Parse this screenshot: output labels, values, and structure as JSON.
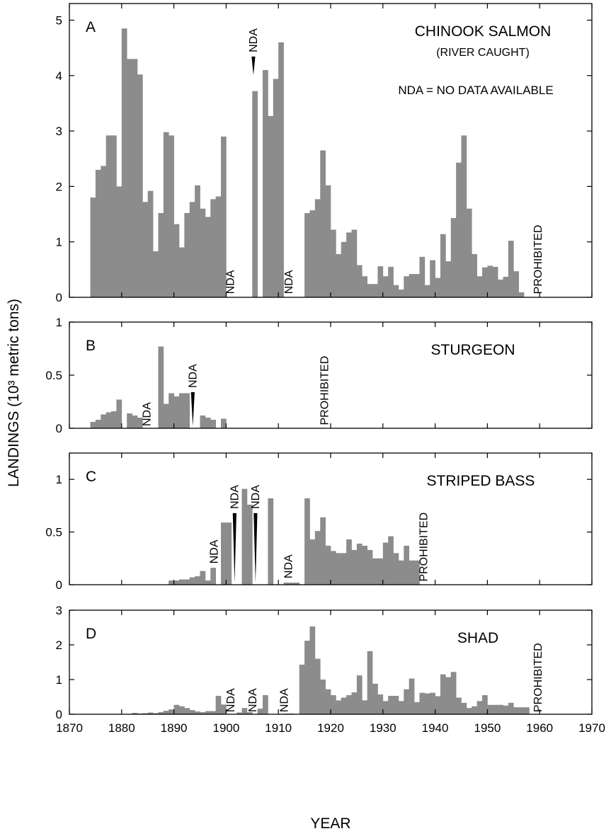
{
  "figure": {
    "ylabel": "LANDINGS (10³ metric tons)",
    "xlabel": "YEAR",
    "bar_color": "#8c8c8c",
    "x_ticks": [
      1870,
      1880,
      1890,
      1900,
      1910,
      1920,
      1930,
      1940,
      1950,
      1960,
      1970
    ]
  },
  "chart_data": [
    {
      "type": "bar",
      "panel": "A",
      "title": "CHINOOK SALMON",
      "subtitle": "(RIVER CAUGHT)",
      "note": "NDA = NO DATA AVAILABLE",
      "xlim": [
        1870,
        1970
      ],
      "ylim": [
        0,
        5.3
      ],
      "y_ticks": [
        0,
        1,
        2,
        3,
        4,
        5
      ],
      "x": [
        1874,
        1875,
        1876,
        1877,
        1878,
        1879,
        1880,
        1881,
        1882,
        1883,
        1884,
        1885,
        1886,
        1887,
        1888,
        1889,
        1890,
        1891,
        1892,
        1893,
        1894,
        1895,
        1896,
        1897,
        1898,
        1899,
        1900,
        1901,
        1902,
        1903,
        1904,
        1905,
        1906,
        1907,
        1908,
        1909,
        1910,
        1911,
        1912,
        1913,
        1914,
        1915,
        1916,
        1917,
        1918,
        1919,
        1920,
        1921,
        1922,
        1923,
        1924,
        1925,
        1926,
        1927,
        1928,
        1929,
        1930,
        1931,
        1932,
        1933,
        1934,
        1935,
        1936,
        1937,
        1938,
        1939,
        1940,
        1941,
        1942,
        1943,
        1944,
        1945,
        1946,
        1947,
        1948,
        1949,
        1950,
        1951,
        1952,
        1953,
        1954,
        1955,
        1956,
        1957,
        1958,
        1959
      ],
      "values": [
        1.8,
        2.3,
        2.37,
        2.92,
        2.92,
        2.0,
        4.85,
        4.3,
        4.3,
        4.02,
        1.72,
        1.92,
        0.83,
        1.52,
        2.98,
        2.92,
        1.32,
        0.9,
        1.52,
        1.72,
        2.02,
        1.6,
        1.45,
        1.77,
        1.82,
        2.9,
        0,
        0,
        0,
        0,
        0,
        3.72,
        0,
        4.1,
        3.27,
        3.94,
        4.6,
        0,
        0,
        0,
        0,
        1.52,
        1.57,
        1.77,
        2.65,
        2.02,
        1.22,
        0.78,
        1.0,
        1.17,
        1.22,
        0.58,
        0.38,
        0.24,
        0.24,
        0.56,
        0.38,
        0.55,
        0.22,
        0.14,
        0.38,
        0.42,
        0.42,
        0.73,
        0.22,
        0.67,
        0.35,
        1.14,
        0.65,
        1.43,
        2.43,
        2.92,
        1.6,
        0.78,
        0.38,
        0.54,
        0.57,
        0.55,
        0.32,
        0.37,
        1.02,
        0.47,
        0.09,
        0,
        0,
        0
      ],
      "annotations": [
        {
          "text": "NDA",
          "x": 1901.5,
          "y": 0.06
        },
        {
          "text": "NDA",
          "x": 1912.7,
          "y": 0.06
        },
        {
          "text": "NDA",
          "x": 1905.9,
          "y": 4.42,
          "pointer_to": 4.01
        },
        {
          "text": "PROHIBITED",
          "x": 1960.4,
          "y": 0.06
        }
      ]
    },
    {
      "type": "bar",
      "panel": "B",
      "title": "STURGEON",
      "xlim": [
        1870,
        1970
      ],
      "ylim": [
        0,
        1.0
      ],
      "y_ticks": [
        0,
        0.5,
        1.0
      ],
      "x": [
        1874,
        1875,
        1876,
        1877,
        1878,
        1879,
        1880,
        1881,
        1882,
        1883,
        1884,
        1885,
        1886,
        1887,
        1888,
        1889,
        1890,
        1891,
        1892,
        1893,
        1894,
        1895,
        1896,
        1897,
        1898,
        1899,
        1900
      ],
      "values": [
        0.06,
        0.08,
        0.13,
        0.15,
        0.16,
        0.27,
        0,
        0.14,
        0.12,
        0.1,
        0,
        0,
        0,
        0.77,
        0.23,
        0.33,
        0.3,
        0.33,
        0.33,
        0,
        0,
        0.12,
        0.1,
        0.08,
        0,
        0.09,
        0
      ],
      "annotations": [
        {
          "text": "NDA",
          "x": 1885.5,
          "y": 0.02
        },
        {
          "text": "NDA",
          "x": 1894.3,
          "y": 0.38,
          "pointer_to": 0.02
        },
        {
          "text": "PROHIBITED",
          "x": 1919.5,
          "y": 0.03
        }
      ]
    },
    {
      "type": "bar",
      "panel": "C",
      "title": "STRIPED BASS",
      "xlim": [
        1870,
        1970
      ],
      "ylim": [
        0,
        1.25
      ],
      "y_ticks": [
        0,
        0.5,
        1.0
      ],
      "x": [
        1889,
        1890,
        1891,
        1892,
        1893,
        1894,
        1895,
        1896,
        1897,
        1898,
        1899,
        1900,
        1901,
        1902,
        1903,
        1904,
        1905,
        1906,
        1907,
        1908,
        1909,
        1910,
        1911,
        1912,
        1913,
        1914,
        1915,
        1916,
        1917,
        1918,
        1919,
        1920,
        1921,
        1922,
        1923,
        1924,
        1925,
        1926,
        1927,
        1928,
        1929,
        1930,
        1931,
        1932,
        1933,
        1934,
        1935,
        1936
      ],
      "values": [
        0.04,
        0.04,
        0.05,
        0.05,
        0.07,
        0.08,
        0.13,
        0.04,
        0.16,
        0,
        0.59,
        0.59,
        0,
        0,
        0.91,
        0.76,
        0,
        0,
        0,
        0.82,
        0,
        0,
        0.02,
        0.02,
        0.02,
        0,
        0.82,
        0.43,
        0.51,
        0.64,
        0.37,
        0.32,
        0.3,
        0.3,
        0.43,
        0.33,
        0.39,
        0.37,
        0.33,
        0.25,
        0.25,
        0.4,
        0.46,
        0.3,
        0.23,
        0.37,
        0.23,
        0.23
      ],
      "annotations": [
        {
          "text": "NDA",
          "x": 1898.4,
          "y": 0.2
        },
        {
          "text": "NDA",
          "x": 1902.3,
          "y": 0.72,
          "pointer_to": 0.02
        },
        {
          "text": "NDA",
          "x": 1906.3,
          "y": 0.72,
          "pointer_to": 0.02
        },
        {
          "text": "NDA",
          "x": 1912.6,
          "y": 0.06
        },
        {
          "text": "PROHIBITED",
          "x": 1938.5,
          "y": 0.03
        }
      ]
    },
    {
      "type": "bar",
      "panel": "D",
      "title": "SHAD",
      "xlim": [
        1870,
        1970
      ],
      "ylim": [
        0,
        3.0
      ],
      "y_ticks": [
        0,
        1,
        2,
        3
      ],
      "x": [
        1878,
        1879,
        1880,
        1881,
        1882,
        1883,
        1884,
        1885,
        1886,
        1887,
        1888,
        1889,
        1890,
        1891,
        1892,
        1893,
        1894,
        1895,
        1896,
        1897,
        1898,
        1899,
        1900,
        1901,
        1902,
        1903,
        1904,
        1905,
        1906,
        1907,
        1908,
        1909,
        1910,
        1911,
        1912,
        1913,
        1914,
        1915,
        1916,
        1917,
        1918,
        1919,
        1920,
        1921,
        1922,
        1923,
        1924,
        1925,
        1926,
        1927,
        1928,
        1929,
        1930,
        1931,
        1932,
        1933,
        1934,
        1935,
        1936,
        1937,
        1938,
        1939,
        1940,
        1941,
        1942,
        1943,
        1944,
        1945,
        1946,
        1947,
        1948,
        1949,
        1950,
        1951,
        1952,
        1953,
        1954,
        1955,
        1956,
        1957
      ],
      "values": [
        0.01,
        0.01,
        0.01,
        0.01,
        0.04,
        0.02,
        0.03,
        0.05,
        0.03,
        0.06,
        0.1,
        0.14,
        0.27,
        0.23,
        0.18,
        0.12,
        0.08,
        0.06,
        0.09,
        0.09,
        0.53,
        0.28,
        0,
        0,
        0.05,
        0.18,
        0.06,
        0,
        0.16,
        0.55,
        0,
        0,
        0.01,
        0.02,
        0.02,
        0.01,
        1.43,
        2.12,
        2.53,
        1.6,
        1.0,
        0.72,
        0.55,
        0.4,
        0.48,
        0.55,
        0.63,
        1.12,
        0.4,
        1.82,
        0.88,
        0.57,
        0.38,
        0.53,
        0.53,
        0.38,
        0.72,
        1.03,
        0.35,
        0.62,
        0.6,
        0.62,
        0.52,
        1.15,
        1.07,
        1.22,
        0.48,
        0.33,
        0.18,
        0.23,
        0.38,
        0.55,
        0.27,
        0.27,
        0.27,
        0.25,
        0.33,
        0.2,
        0.2,
        0.2
      ],
      "annotations": [
        {
          "text": "NDA",
          "x": 1901.6,
          "y": 0.06
        },
        {
          "text": "NDA",
          "x": 1905.8,
          "y": 0.06
        },
        {
          "text": "NDA",
          "x": 1911.8,
          "y": 0.06
        },
        {
          "text": "PROHIBITED",
          "x": 1960.4,
          "y": 0.06
        }
      ]
    }
  ]
}
